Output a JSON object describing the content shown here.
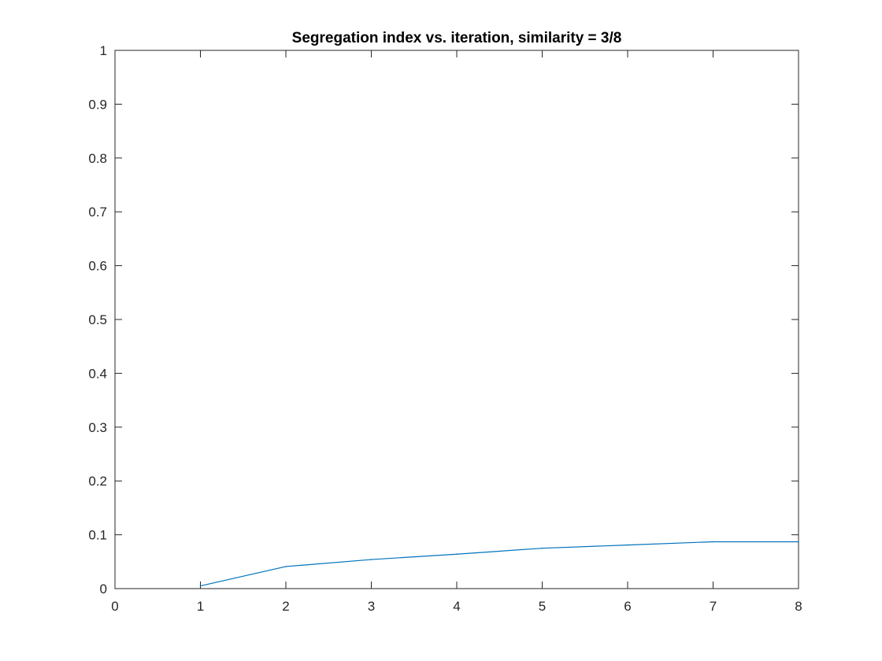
{
  "chart_data": {
    "type": "line",
    "title": "Segregation index vs. iteration, similarity = 3/8",
    "xlabel": "",
    "ylabel": "",
    "xlim": [
      0,
      8
    ],
    "ylim": [
      0,
      1
    ],
    "x_ticks": [
      0,
      1,
      2,
      3,
      4,
      5,
      6,
      7,
      8
    ],
    "x_tick_labels": [
      "0",
      "1",
      "2",
      "3",
      "4",
      "5",
      "6",
      "7",
      "8"
    ],
    "y_ticks": [
      0,
      0.1,
      0.2,
      0.3,
      0.4,
      0.5,
      0.6,
      0.7,
      0.8,
      0.9,
      1
    ],
    "y_tick_labels": [
      "0",
      "0.1",
      "0.2",
      "0.3",
      "0.4",
      "0.5",
      "0.6",
      "0.7",
      "0.8",
      "0.9",
      "1"
    ],
    "grid": false,
    "legend": "none",
    "series": [
      {
        "color": "#0072BD",
        "x": [
          1,
          2,
          3,
          4,
          5,
          6,
          7,
          8
        ],
        "y": [
          0.005,
          0.041,
          0.054,
          0.064,
          0.075,
          0.081,
          0.087,
          0.087
        ]
      }
    ]
  }
}
